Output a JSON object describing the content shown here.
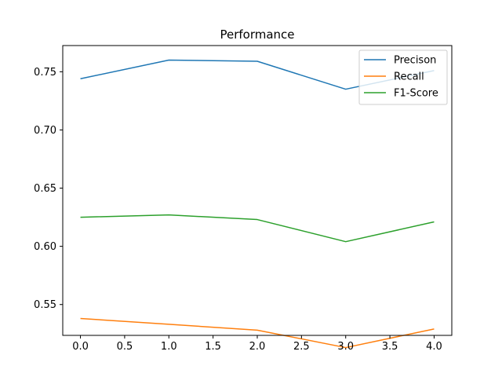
{
  "chart_data": {
    "type": "line",
    "title": "Performance",
    "xlabel": "",
    "ylabel": "",
    "x": [
      0,
      1,
      2,
      3,
      4
    ],
    "xlim": [
      -0.2,
      4.2
    ],
    "ylim": [
      0.5235,
      0.7725
    ],
    "xticks": [
      0.0,
      0.5,
      1.0,
      1.5,
      2.0,
      2.5,
      3.0,
      3.5,
      4.0
    ],
    "yticks": [
      0.55,
      0.6,
      0.65,
      0.7,
      0.75
    ],
    "grid": false,
    "legend_position": "top-right",
    "series": [
      {
        "name": "Precison",
        "color": "#1f77b4",
        "values": [
          0.744,
          0.76,
          0.759,
          0.735,
          0.751
        ]
      },
      {
        "name": "Recall",
        "color": "#ff7f0e",
        "values": [
          0.538,
          0.533,
          0.528,
          0.513,
          0.529
        ]
      },
      {
        "name": "F1-Score",
        "color": "#2ca02c",
        "values": [
          0.625,
          0.627,
          0.623,
          0.604,
          0.621
        ]
      }
    ]
  }
}
